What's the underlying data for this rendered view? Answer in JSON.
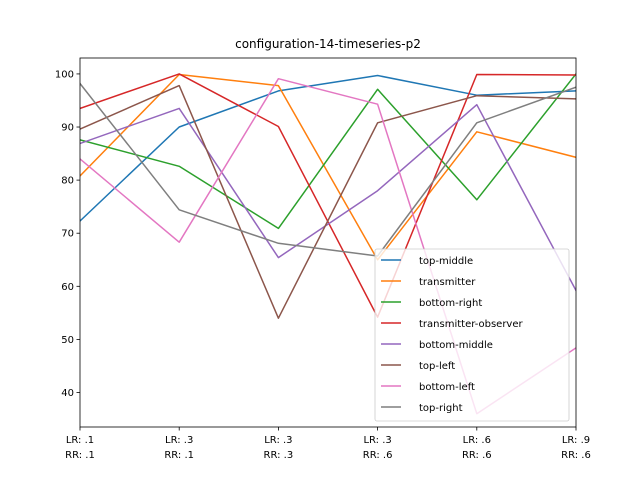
{
  "chart_data": {
    "type": "line",
    "title": "configuration-14-timeseries-p2",
    "xlabel": "",
    "ylabel": "",
    "categories": [
      [
        "LR: .1",
        "RR: .1"
      ],
      [
        "LR: .3",
        "RR: .1"
      ],
      [
        "LR: .3",
        "RR: .3"
      ],
      [
        "LR: .3",
        "RR: .6"
      ],
      [
        "LR: .6",
        "RR: .6"
      ],
      [
        "LR: .9",
        "RR: .6"
      ]
    ],
    "ylim": [
      33.5,
      103
    ],
    "yticks": [
      40,
      50,
      60,
      70,
      80,
      90,
      100
    ],
    "grid": false,
    "legend_placement": "lower-right",
    "series": [
      {
        "name": "top-middle",
        "color": "#1f77b4",
        "values": [
          72.3,
          90.0,
          96.8,
          99.7,
          96.0,
          96.8
        ]
      },
      {
        "name": "transmitter",
        "color": "#ff7f0e",
        "values": [
          80.8,
          99.9,
          97.8,
          65.0,
          89.1,
          84.3
        ]
      },
      {
        "name": "bottom-right",
        "color": "#2ca02c",
        "values": [
          87.6,
          82.6,
          70.9,
          97.1,
          76.3,
          100.0
        ]
      },
      {
        "name": "transmitter-observer",
        "color": "#d62728",
        "values": [
          93.5,
          100.0,
          90.1,
          54.2,
          99.9,
          99.8
        ]
      },
      {
        "name": "bottom-middle",
        "color": "#9467bd",
        "values": [
          86.9,
          93.5,
          65.4,
          78.0,
          94.2,
          59.2
        ]
      },
      {
        "name": "top-left",
        "color": "#8c564b",
        "values": [
          89.6,
          97.8,
          54.0,
          90.8,
          95.9,
          95.3
        ]
      },
      {
        "name": "bottom-left",
        "color": "#e377c2",
        "values": [
          84.0,
          68.3,
          99.1,
          94.3,
          36.0,
          48.4
        ]
      },
      {
        "name": "top-right",
        "color": "#7f7f7f",
        "values": [
          98.2,
          74.4,
          68.1,
          65.7,
          90.8,
          97.5
        ]
      }
    ]
  }
}
